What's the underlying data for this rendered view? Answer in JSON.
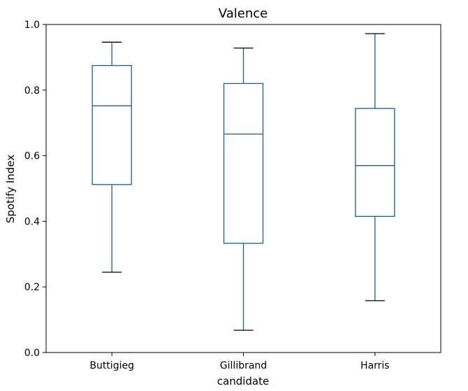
{
  "chart_data": {
    "type": "boxplot",
    "title": "Valence",
    "xlabel": "candidate",
    "ylabel": "Spotify Index",
    "ylim": [
      0.0,
      1.0
    ],
    "yticks": [
      0.0,
      0.2,
      0.4,
      0.6,
      0.8,
      1.0
    ],
    "ytick_labels": [
      "0.0",
      "0.2",
      "0.4",
      "0.6",
      "0.8",
      "1.0"
    ],
    "grid": false,
    "box_color": "#1f5f7a",
    "whisker_color": "#1f5f7a",
    "cap_color": "#000000",
    "categories": [
      "Buttigieg",
      "Gillibrand",
      "Harris"
    ],
    "boxes": [
      {
        "category": "Buttigieg",
        "whisker_low": 0.245,
        "q1": 0.512,
        "median": 0.752,
        "q3": 0.875,
        "whisker_high": 0.946
      },
      {
        "category": "Gillibrand",
        "whisker_low": 0.068,
        "q1": 0.333,
        "median": 0.666,
        "q3": 0.82,
        "whisker_high": 0.928
      },
      {
        "category": "Harris",
        "whisker_low": 0.158,
        "q1": 0.415,
        "median": 0.57,
        "q3": 0.744,
        "whisker_high": 0.972
      }
    ]
  }
}
